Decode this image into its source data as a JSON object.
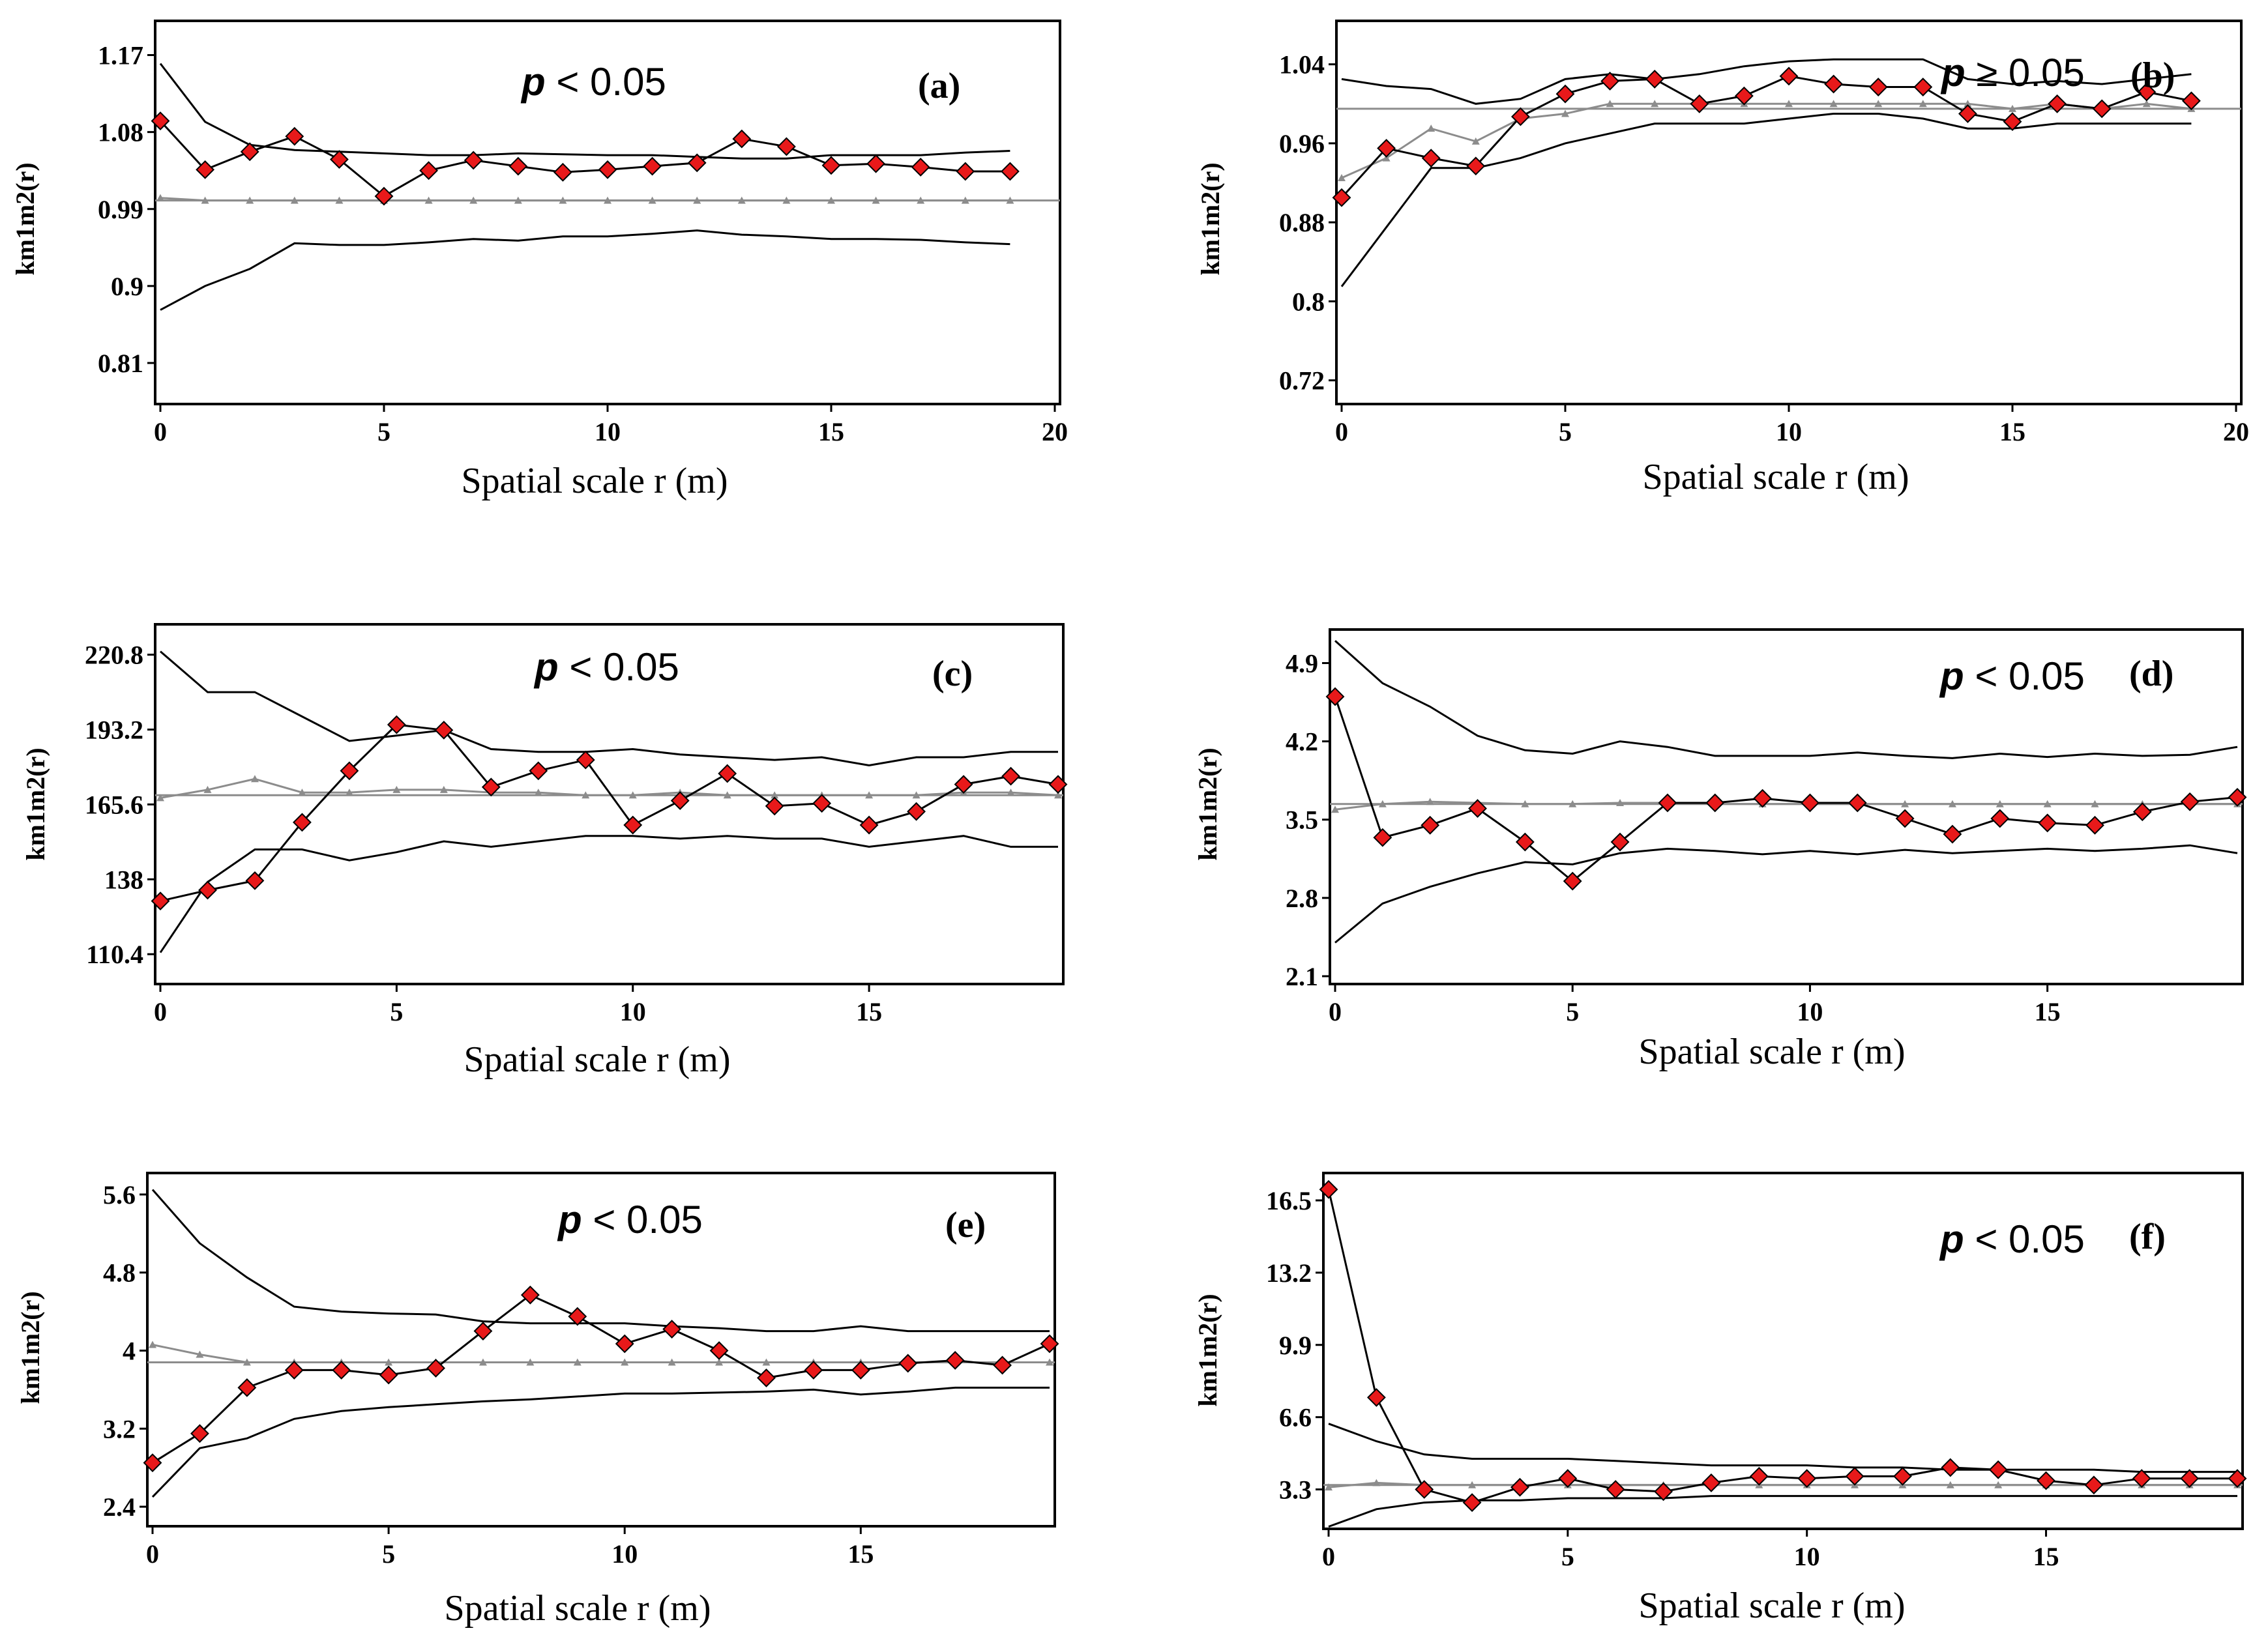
{
  "colors": {
    "observed": "#e8191a",
    "envelope": "#000000",
    "expected": "#8c8c8c",
    "frame": "#000000"
  },
  "chart_data": [
    {
      "type": "line",
      "panel_label": "(a)",
      "p_prefix": "p",
      "p_text": " < 0.05",
      "xlabel": "Spatial scale r (m)",
      "ylabel": "km1m2(r)",
      "xlim": [
        0,
        20
      ],
      "ylim": [
        0.762,
        1.21
      ],
      "xticks": [
        0,
        5,
        10,
        15,
        20
      ],
      "x_tick_labels": [
        "0",
        "5",
        "10",
        "15",
        "20"
      ],
      "yticks": [
        0.81,
        0.9,
        0.99,
        1.08,
        1.17
      ],
      "y_tick_labels": [
        "0.81",
        "0.9",
        "0.99",
        "1.08",
        "1.17"
      ],
      "x": [
        0,
        1,
        2,
        3,
        4,
        5,
        6,
        7,
        8,
        9,
        10,
        11,
        12,
        13,
        14,
        15,
        16,
        17,
        18,
        19
      ],
      "series": [
        {
          "name": "observed",
          "values": [
            1.093,
            1.036,
            1.057,
            1.075,
            1.048,
            1.005,
            1.035,
            1.047,
            1.04,
            1.033,
            1.036,
            1.04,
            1.044,
            1.072,
            1.063,
            1.041,
            1.043,
            1.039,
            1.034,
            1.034
          ]
        },
        {
          "name": "upper envelope",
          "values": [
            1.16,
            1.092,
            1.065,
            1.059,
            1.057,
            1.055,
            1.053,
            1.053,
            1.055,
            1.054,
            1.053,
            1.053,
            1.051,
            1.049,
            1.049,
            1.053,
            1.053,
            1.053,
            1.056,
            1.058
          ]
        },
        {
          "name": "lower envelope",
          "values": [
            0.872,
            0.9,
            0.92,
            0.95,
            0.948,
            0.948,
            0.951,
            0.955,
            0.953,
            0.958,
            0.958,
            0.961,
            0.965,
            0.96,
            0.958,
            0.955,
            0.955,
            0.954,
            0.951,
            0.949
          ]
        },
        {
          "name": "expected",
          "values": [
            1.003,
            1.0,
            1.0,
            1.0,
            1.0,
            1.0,
            1.0,
            1.0,
            1.0,
            1.0,
            1.0,
            1.0,
            1.0,
            1.0,
            1.0,
            1.0,
            1.0,
            1.0,
            1.0,
            1.0
          ]
        }
      ]
    },
    {
      "type": "line",
      "panel_label": "(b)",
      "p_prefix": "p",
      "p_text": " ≥ 0.05",
      "xlabel": "Spatial scale r (m)",
      "ylabel": "km1m2(r)",
      "xlim": [
        0,
        20
      ],
      "ylim": [
        0.696,
        1.084
      ],
      "xticks": [
        0,
        5,
        10,
        15,
        20
      ],
      "x_tick_labels": [
        "0",
        "5",
        "10",
        "15",
        "20"
      ],
      "yticks": [
        0.72,
        0.8,
        0.88,
        0.96,
        1.04
      ],
      "y_tick_labels": [
        "0.72",
        "0.8",
        "0.88",
        "0.96",
        "1.04"
      ],
      "x": [
        0,
        1,
        2,
        3,
        4,
        5,
        6,
        7,
        8,
        9,
        10,
        11,
        12,
        13,
        14,
        15,
        16,
        17,
        18,
        19
      ],
      "series": [
        {
          "name": "observed",
          "values": [
            0.905,
            0.955,
            0.945,
            0.937,
            0.987,
            1.01,
            1.023,
            1.025,
            1.0,
            1.008,
            1.028,
            1.02,
            1.017,
            1.017,
            0.99,
            0.982,
            1.0,
            0.995,
            1.012,
            1.003
          ]
        },
        {
          "name": "upper envelope",
          "values": [
            1.025,
            1.018,
            1.015,
            1.0,
            1.005,
            1.025,
            1.03,
            1.025,
            1.03,
            1.038,
            1.043,
            1.045,
            1.045,
            1.045,
            1.025,
            1.02,
            1.023,
            1.02,
            1.025,
            1.03
          ]
        },
        {
          "name": "lower envelope",
          "values": [
            0.815,
            0.875,
            0.935,
            0.935,
            0.945,
            0.96,
            0.97,
            0.98,
            0.98,
            0.98,
            0.985,
            0.99,
            0.99,
            0.985,
            0.975,
            0.975,
            0.98,
            0.98,
            0.98,
            0.98
          ]
        },
        {
          "name": "expected",
          "values": [
            0.925,
            0.945,
            0.975,
            0.962,
            0.985,
            0.99,
            1.0,
            1.0,
            1.0,
            1.0,
            1.0,
            1.0,
            1.0,
            1.0,
            1.0,
            0.995,
            1.0,
            0.995,
            1.0,
            0.995
          ]
        }
      ]
    },
    {
      "type": "line",
      "panel_label": "(c)",
      "p_prefix": "p",
      "p_text": " < 0.05",
      "xlabel": "Spatial scale r (m)",
      "ylabel": "km1m2(r)",
      "xlim": [
        0,
        19
      ],
      "ylim": [
        99.4,
        232
      ],
      "xticks": [
        0,
        5,
        10,
        15
      ],
      "x_tick_labels": [
        "0",
        "5",
        "10",
        "15"
      ],
      "yticks": [
        110.4,
        138,
        165.6,
        193.2,
        220.8
      ],
      "y_tick_labels": [
        "110.4",
        "138",
        "165.6",
        "193.2",
        "220.8"
      ],
      "x": [
        0,
        1,
        2,
        3,
        4,
        5,
        6,
        7,
        8,
        9,
        10,
        11,
        12,
        13,
        14,
        15,
        16,
        17,
        18,
        19
      ],
      "series": [
        {
          "name": "observed",
          "values": [
            130,
            134,
            137.5,
            159,
            178,
            195,
            193,
            172,
            178,
            182,
            158,
            167,
            177,
            165,
            166,
            158,
            163,
            173,
            176,
            173
          ]
        },
        {
          "name": "upper envelope",
          "values": [
            222,
            207,
            207,
            198,
            189,
            191,
            193,
            186,
            185,
            185,
            186,
            184,
            183,
            182,
            183,
            180,
            183,
            183,
            185,
            185
          ]
        },
        {
          "name": "lower envelope",
          "values": [
            111,
            137,
            149,
            149,
            145,
            148,
            152,
            150,
            152,
            154,
            154,
            153,
            154,
            153,
            153,
            150,
            152,
            154,
            150,
            150
          ]
        },
        {
          "name": "expected",
          "values": [
            168,
            171,
            175,
            170,
            170,
            171,
            171,
            170,
            170,
            169,
            169,
            170,
            169,
            169,
            169,
            169,
            169,
            170,
            170,
            169
          ]
        }
      ]
    },
    {
      "type": "line",
      "panel_label": "(d)",
      "p_prefix": "p",
      "p_text": " < 0.05",
      "xlabel": "Spatial scale r (m)",
      "ylabel": "km1m2(r)",
      "xlim": [
        0,
        19
      ],
      "ylim": [
        2.03,
        5.2
      ],
      "xticks": [
        0,
        5,
        10,
        15
      ],
      "x_tick_labels": [
        "0",
        "5",
        "10",
        "15"
      ],
      "yticks": [
        2.1,
        2.8,
        3.5,
        4.2,
        4.9
      ],
      "y_tick_labels": [
        "2.1",
        "2.8",
        "3.5",
        "4.2",
        "4.9"
      ],
      "x": [
        0,
        1,
        2,
        3,
        4,
        5,
        6,
        7,
        8,
        9,
        10,
        11,
        12,
        13,
        14,
        15,
        16,
        17,
        18,
        19
      ],
      "series": [
        {
          "name": "observed",
          "values": [
            4.6,
            3.34,
            3.45,
            3.6,
            3.3,
            2.95,
            3.3,
            3.65,
            3.65,
            3.69,
            3.65,
            3.65,
            3.51,
            3.37,
            3.51,
            3.47,
            3.45,
            3.57,
            3.66,
            3.7
          ]
        },
        {
          "name": "upper envelope",
          "values": [
            5.1,
            4.72,
            4.51,
            4.25,
            4.12,
            4.09,
            4.2,
            4.15,
            4.07,
            4.07,
            4.07,
            4.1,
            4.07,
            4.05,
            4.09,
            4.06,
            4.09,
            4.07,
            4.08,
            4.15
          ]
        },
        {
          "name": "lower envelope",
          "values": [
            2.4,
            2.75,
            2.9,
            3.02,
            3.12,
            3.1,
            3.2,
            3.24,
            3.22,
            3.19,
            3.22,
            3.19,
            3.23,
            3.2,
            3.22,
            3.24,
            3.22,
            3.24,
            3.27,
            3.2
          ]
        },
        {
          "name": "expected",
          "values": [
            3.59,
            3.64,
            3.66,
            3.65,
            3.64,
            3.64,
            3.65,
            3.65,
            3.64,
            3.64,
            3.64,
            3.64,
            3.64,
            3.64,
            3.64,
            3.64,
            3.64,
            3.64,
            3.64,
            3.64
          ]
        }
      ]
    },
    {
      "type": "line",
      "panel_label": "(e)",
      "p_prefix": "p",
      "p_text": " < 0.05",
      "xlabel": "Spatial scale r (m)",
      "ylabel": "km1m2(r)",
      "xlim": [
        0,
        19
      ],
      "ylim": [
        2.2,
        5.82
      ],
      "xticks": [
        0,
        5,
        10,
        15
      ],
      "x_tick_labels": [
        "0",
        "5",
        "10",
        "15"
      ],
      "yticks": [
        2.4,
        3.2,
        4,
        4.8,
        5.6
      ],
      "y_tick_labels": [
        "2.4",
        "3.2",
        "4",
        "4.8",
        "5.6"
      ],
      "x": [
        0,
        1,
        2,
        3,
        4,
        5,
        6,
        7,
        8,
        9,
        10,
        11,
        12,
        13,
        14,
        15,
        16,
        17,
        18,
        19
      ],
      "series": [
        {
          "name": "observed",
          "values": [
            2.85,
            3.15,
            3.62,
            3.8,
            3.8,
            3.75,
            3.82,
            4.2,
            4.57,
            4.35,
            4.07,
            4.22,
            4.0,
            3.72,
            3.8,
            3.8,
            3.87,
            3.9,
            3.85,
            4.07
          ]
        },
        {
          "name": "upper envelope",
          "values": [
            5.65,
            5.1,
            4.75,
            4.45,
            4.4,
            4.38,
            4.37,
            4.3,
            4.28,
            4.28,
            4.28,
            4.25,
            4.23,
            4.2,
            4.2,
            4.25,
            4.2,
            4.2,
            4.2,
            4.2
          ]
        },
        {
          "name": "lower envelope",
          "values": [
            2.5,
            3.0,
            3.1,
            3.3,
            3.38,
            3.42,
            3.45,
            3.48,
            3.5,
            3.53,
            3.56,
            3.56,
            3.57,
            3.58,
            3.6,
            3.55,
            3.58,
            3.62,
            3.62,
            3.62
          ]
        },
        {
          "name": "expected",
          "values": [
            4.06,
            3.96,
            3.88,
            3.88,
            3.88,
            3.88,
            3.88,
            3.88,
            3.88,
            3.88,
            3.88,
            3.88,
            3.88,
            3.88,
            3.88,
            3.88,
            3.88,
            3.88,
            3.88,
            3.88
          ]
        }
      ]
    },
    {
      "type": "line",
      "panel_label": "(f)",
      "p_prefix": "p",
      "p_text": " < 0.05",
      "xlabel": "Spatial scale r (m)",
      "ylabel": "km1m2(r)",
      "xlim": [
        0,
        19
      ],
      "ylim": [
        1.5,
        17.75
      ],
      "xticks": [
        0,
        5,
        10,
        15
      ],
      "x_tick_labels": [
        "0",
        "5",
        "10",
        "15"
      ],
      "yticks": [
        3.3,
        6.6,
        9.9,
        13.2,
        16.5
      ],
      "y_tick_labels": [
        "3.3",
        "6.6",
        "9.9",
        "13.2",
        "16.5"
      ],
      "x": [
        0,
        1,
        2,
        3,
        4,
        5,
        6,
        7,
        8,
        9,
        10,
        11,
        12,
        13,
        14,
        15,
        16,
        17,
        18,
        19
      ],
      "series": [
        {
          "name": "observed",
          "values": [
            17.0,
            7.5,
            3.3,
            2.7,
            3.4,
            3.8,
            3.3,
            3.2,
            3.6,
            3.9,
            3.8,
            3.9,
            3.9,
            4.3,
            4.2,
            3.7,
            3.5,
            3.8,
            3.8,
            3.8
          ]
        },
        {
          "name": "upper envelope",
          "values": [
            6.3,
            5.5,
            4.9,
            4.7,
            4.7,
            4.7,
            4.6,
            4.5,
            4.4,
            4.4,
            4.4,
            4.3,
            4.3,
            4.2,
            4.2,
            4.2,
            4.2,
            4.1,
            4.1,
            4.1
          ]
        },
        {
          "name": "lower envelope",
          "values": [
            1.6,
            2.4,
            2.7,
            2.8,
            2.8,
            2.9,
            2.9,
            2.9,
            3.0,
            3.0,
            3.0,
            3.0,
            3.0,
            3.0,
            3.0,
            3.0,
            3.0,
            3.0,
            3.0,
            3.0
          ]
        },
        {
          "name": "expected",
          "values": [
            3.4,
            3.6,
            3.5,
            3.5,
            3.5,
            3.5,
            3.5,
            3.5,
            3.5,
            3.5,
            3.5,
            3.5,
            3.5,
            3.5,
            3.5,
            3.5,
            3.5,
            3.5,
            3.5,
            3.5
          ]
        }
      ]
    }
  ]
}
